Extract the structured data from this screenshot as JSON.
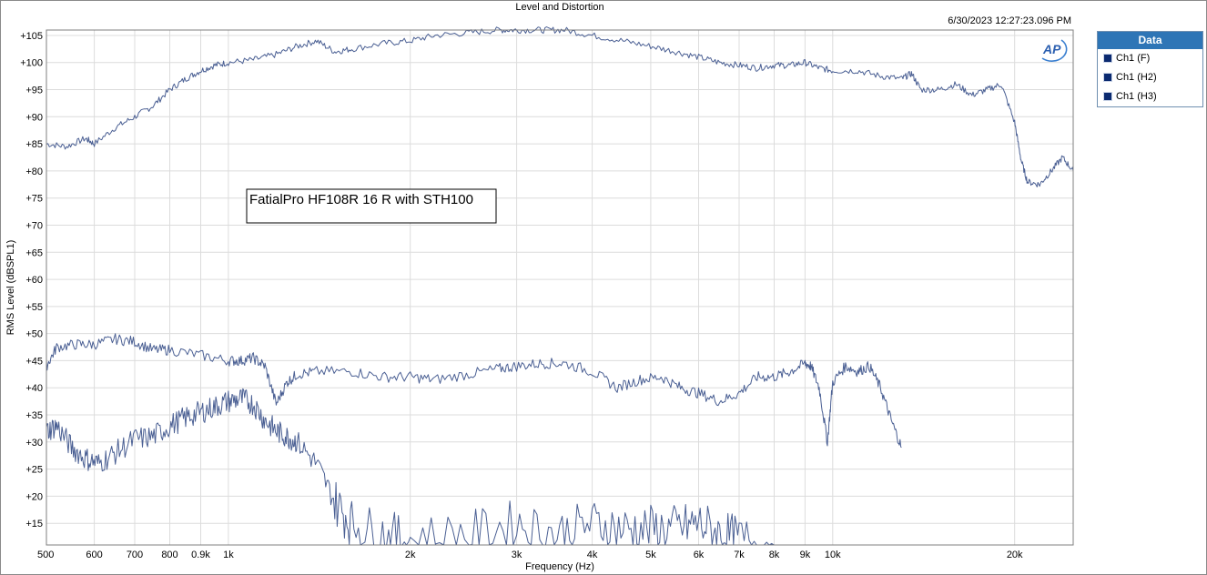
{
  "header": {
    "title": "Level and Distortion",
    "timestamp": "6/30/2023 12:27:23.096 PM"
  },
  "logo": {
    "text": "AP"
  },
  "annotation": {
    "text": "FatialPro HF108R 16 R with STH100"
  },
  "legend": {
    "title": "Data",
    "items": [
      "Ch1 (F)",
      "Ch1 (H2)",
      "Ch1 (H3)"
    ]
  },
  "colors": {
    "trace": "#4a5f93",
    "grid": "#dcdcdc",
    "legend_header": "#2e75b6",
    "swatch": "#0b2a70"
  },
  "chart_data": {
    "type": "line",
    "title": "Level and Distortion",
    "xlabel": "Frequency (Hz)",
    "ylabel": "RMS Level (dBSPL1)",
    "x_scale": "log",
    "xlim": [
      500,
      25000
    ],
    "ylim": [
      11,
      106
    ],
    "x_ticks": [
      {
        "v": 500,
        "label": "500"
      },
      {
        "v": 600,
        "label": "600"
      },
      {
        "v": 700,
        "label": "700"
      },
      {
        "v": 800,
        "label": "800"
      },
      {
        "v": 900,
        "label": "0.9k"
      },
      {
        "v": 1000,
        "label": "1k"
      },
      {
        "v": 2000,
        "label": "2k"
      },
      {
        "v": 3000,
        "label": "3k"
      },
      {
        "v": 4000,
        "label": "4k"
      },
      {
        "v": 5000,
        "label": "5k"
      },
      {
        "v": 6000,
        "label": "6k"
      },
      {
        "v": 7000,
        "label": "7k"
      },
      {
        "v": 8000,
        "label": "8k"
      },
      {
        "v": 9000,
        "label": "9k"
      },
      {
        "v": 10000,
        "label": "10k"
      },
      {
        "v": 20000,
        "label": "20k"
      }
    ],
    "y_ticks": [
      {
        "v": 15,
        "label": "+15"
      },
      {
        "v": 20,
        "label": "+20"
      },
      {
        "v": 25,
        "label": "+25"
      },
      {
        "v": 30,
        "label": "+30"
      },
      {
        "v": 35,
        "label": "+35"
      },
      {
        "v": 40,
        "label": "+40"
      },
      {
        "v": 45,
        "label": "+45"
      },
      {
        "v": 50,
        "label": "+50"
      },
      {
        "v": 55,
        "label": "+55"
      },
      {
        "v": 60,
        "label": "+60"
      },
      {
        "v": 65,
        "label": "+65"
      },
      {
        "v": 70,
        "label": "+70"
      },
      {
        "v": 75,
        "label": "+75"
      },
      {
        "v": 80,
        "label": "+80"
      },
      {
        "v": 85,
        "label": "+85"
      },
      {
        "v": 90,
        "label": "+90"
      },
      {
        "v": 95,
        "label": "+95"
      },
      {
        "v": 100,
        "label": "+100"
      },
      {
        "v": 105,
        "label": "+105"
      }
    ],
    "grid": true,
    "legend_position": "right",
    "series": [
      {
        "name": "Ch1 (F)",
        "x": [
          500,
          540,
          580,
          600,
          650,
          700,
          750,
          800,
          850,
          900,
          950,
          1000,
          1100,
          1200,
          1300,
          1400,
          1500,
          1600,
          1800,
          2000,
          2200,
          2500,
          2800,
          3000,
          3300,
          3600,
          4000,
          4500,
          5000,
          5500,
          6000,
          6500,
          7000,
          7500,
          8000,
          8500,
          9000,
          9500,
          10000,
          11000,
          12000,
          13000,
          13500,
          14000,
          15000,
          16000,
          17000,
          18000,
          19000,
          20000,
          20500,
          21000,
          22000,
          23000,
          24000,
          25000
        ],
        "y": [
          85,
          84.5,
          86,
          85,
          88,
          90,
          92,
          95,
          97,
          98.5,
          99.5,
          100,
          100.5,
          101.5,
          103,
          104,
          102,
          102.5,
          103.5,
          104,
          105,
          105.5,
          106,
          106,
          106,
          106,
          105,
          104,
          103,
          102,
          101,
          100,
          99.5,
          99,
          99.5,
          99.5,
          100,
          99,
          98.5,
          98.5,
          97.5,
          97,
          98,
          95,
          95,
          96,
          94,
          95,
          96,
          89,
          82,
          78,
          77.5,
          80,
          82.5,
          80
        ]
      },
      {
        "name": "Ch1 (H2)",
        "x": [
          500,
          520,
          560,
          600,
          650,
          700,
          750,
          800,
          900,
          1000,
          1050,
          1100,
          1150,
          1200,
          1250,
          1300,
          1400,
          1600,
          1800,
          2000,
          2200,
          2500,
          2800,
          3000,
          3300,
          3600,
          4000,
          4400,
          4800,
          5200,
          5600,
          6000,
          6500,
          7000,
          7500,
          8000,
          8500,
          9000,
          9200,
          9500,
          9800,
          10000,
          10500,
          11000,
          11500,
          12000,
          12500,
          13000
        ],
        "y": [
          44,
          47.5,
          48,
          48,
          49,
          48.5,
          47,
          47,
          46,
          45,
          45,
          45.5,
          44,
          37,
          41,
          42.5,
          43,
          43,
          42,
          42,
          41.5,
          42.5,
          43.5,
          44,
          44.5,
          44.5,
          43,
          40,
          41.5,
          42,
          40,
          39,
          37.5,
          39,
          42,
          42,
          43,
          44.5,
          44,
          40,
          30,
          41,
          44,
          43,
          44,
          40,
          34,
          29
        ]
      },
      {
        "name": "Ch1 (H3)",
        "x": [
          500,
          520,
          550,
          580,
          610,
          650,
          700,
          750,
          800,
          850,
          900,
          950,
          1000,
          1050,
          1100,
          1150,
          1200,
          1250,
          1300,
          1400,
          1500,
          1600,
          1800,
          2000,
          2500,
          3000,
          3500,
          4000,
          4500,
          5000,
          5500,
          6000,
          6500,
          7000,
          8000
        ],
        "y": [
          32,
          33,
          29,
          27,
          26,
          28,
          30.5,
          31,
          33,
          34.5,
          35.5,
          36.5,
          37.5,
          38,
          37,
          34,
          32,
          31,
          30,
          26,
          19,
          15,
          13,
          12,
          13,
          15,
          13,
          15,
          14,
          14,
          14,
          15,
          13,
          12,
          11
        ]
      }
    ]
  }
}
